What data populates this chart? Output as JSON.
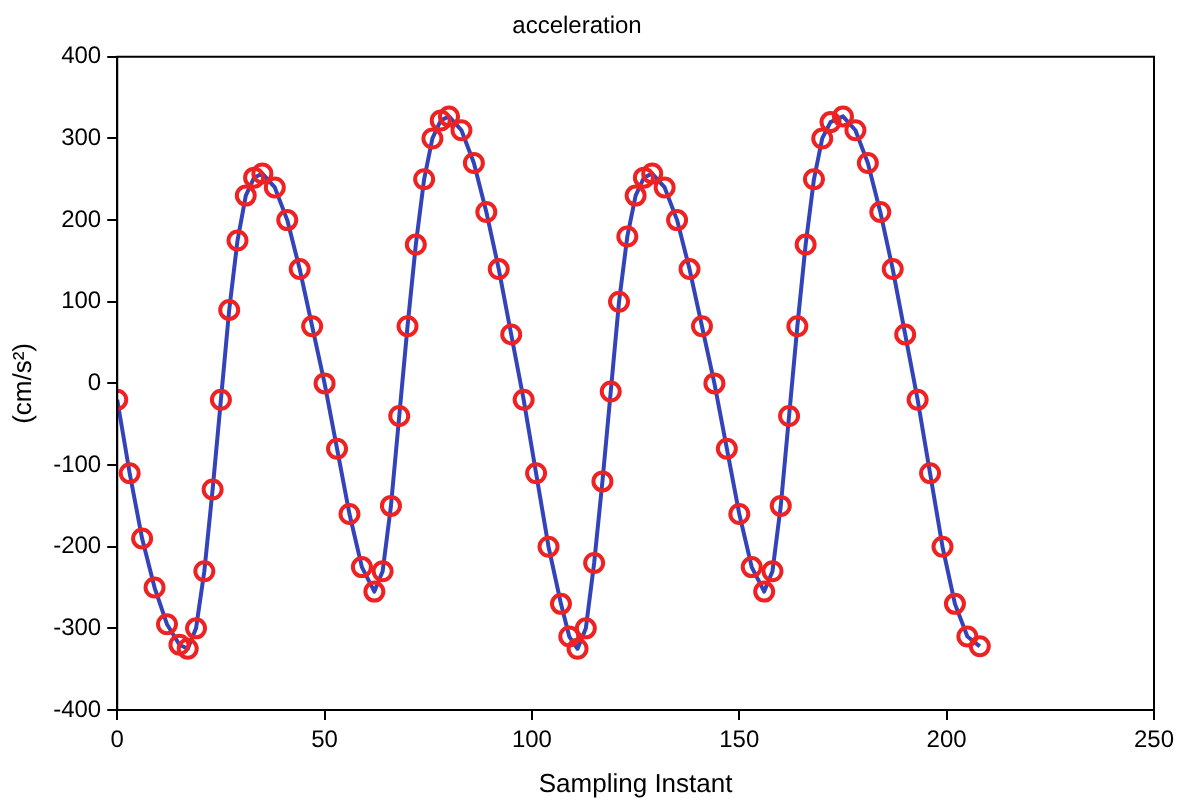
{
  "chart_data": {
    "type": "line",
    "title": "acceleration",
    "xlabel": "Sampling Instant",
    "ylabel": "(cm/s²)",
    "xlim": [
      0,
      250
    ],
    "xticks": [
      0,
      50,
      100,
      150,
      200,
      250
    ],
    "ylim": [
      -400,
      400
    ],
    "yticks": [
      -400,
      -300,
      -200,
      -100,
      0,
      100,
      200,
      300,
      400
    ],
    "grid": false,
    "legend": false,
    "series": [
      {
        "type": "scatter",
        "marker": "circle",
        "color": "#ee2222",
        "x": [
          0,
          3,
          6,
          9,
          12,
          15,
          17,
          19,
          21,
          23,
          25,
          27,
          29,
          31,
          33,
          35,
          38,
          41,
          44,
          47,
          50,
          53,
          56,
          59,
          62,
          64,
          66,
          68,
          70,
          72,
          74,
          76,
          78,
          80,
          83,
          86,
          89,
          92,
          95,
          98,
          101,
          104,
          107,
          109,
          111,
          113,
          115,
          117,
          119,
          121,
          123,
          125,
          127,
          129,
          132,
          135,
          138,
          141,
          144,
          147,
          150,
          153,
          156,
          158,
          160,
          162,
          164,
          166,
          168,
          170,
          172,
          175,
          178,
          181,
          184,
          187,
          190,
          193,
          196,
          199,
          202,
          205,
          208
        ],
        "values": [
          -20,
          -110,
          -190,
          -250,
          -295,
          -320,
          -325,
          -300,
          -230,
          -130,
          -20,
          90,
          175,
          230,
          252,
          257,
          240,
          200,
          140,
          70,
          0,
          -80,
          -160,
          -225,
          -255,
          -230,
          -150,
          -40,
          70,
          170,
          250,
          300,
          322,
          327,
          310,
          270,
          210,
          140,
          60,
          -20,
          -110,
          -200,
          -270,
          -310,
          -325,
          -300,
          -220,
          -120,
          -10,
          100,
          180,
          230,
          252,
          257,
          240,
          200,
          140,
          70,
          0,
          -80,
          -160,
          -225,
          -255,
          -230,
          -150,
          -40,
          70,
          170,
          250,
          300,
          320,
          327,
          310,
          270,
          210,
          140,
          60,
          -20,
          -110,
          -200,
          -270,
          -310,
          -322
        ]
      },
      {
        "type": "line",
        "marker": "none",
        "line_style": "solid",
        "color": "#3344bb",
        "x": [
          0,
          3,
          6,
          9,
          12,
          15,
          17,
          19,
          21,
          23,
          25,
          27,
          29,
          31,
          33,
          35,
          38,
          41,
          44,
          47,
          50,
          53,
          56,
          59,
          62,
          64,
          66,
          68,
          70,
          72,
          74,
          76,
          78,
          80,
          83,
          86,
          89,
          92,
          95,
          98,
          101,
          104,
          107,
          109,
          111,
          113,
          115,
          117,
          119,
          121,
          123,
          125,
          127,
          129,
          132,
          135,
          138,
          141,
          144,
          147,
          150,
          153,
          156,
          158,
          160,
          162,
          164,
          166,
          168,
          170,
          172,
          175,
          178,
          181,
          184,
          187,
          190,
          193,
          196,
          199,
          202,
          205,
          208
        ],
        "values": [
          -20,
          -110,
          -190,
          -250,
          -295,
          -320,
          -325,
          -300,
          -230,
          -130,
          -20,
          90,
          175,
          230,
          252,
          257,
          240,
          200,
          140,
          70,
          0,
          -80,
          -160,
          -225,
          -255,
          -230,
          -150,
          -40,
          70,
          170,
          250,
          300,
          322,
          327,
          310,
          270,
          210,
          140,
          60,
          -20,
          -110,
          -200,
          -270,
          -310,
          -325,
          -300,
          -220,
          -120,
          -10,
          100,
          180,
          230,
          252,
          257,
          240,
          200,
          140,
          70,
          0,
          -80,
          -160,
          -225,
          -255,
          -230,
          -150,
          -40,
          70,
          170,
          250,
          300,
          320,
          327,
          310,
          270,
          210,
          140,
          60,
          -20,
          -110,
          -200,
          -270,
          -310,
          -322
        ]
      }
    ]
  }
}
